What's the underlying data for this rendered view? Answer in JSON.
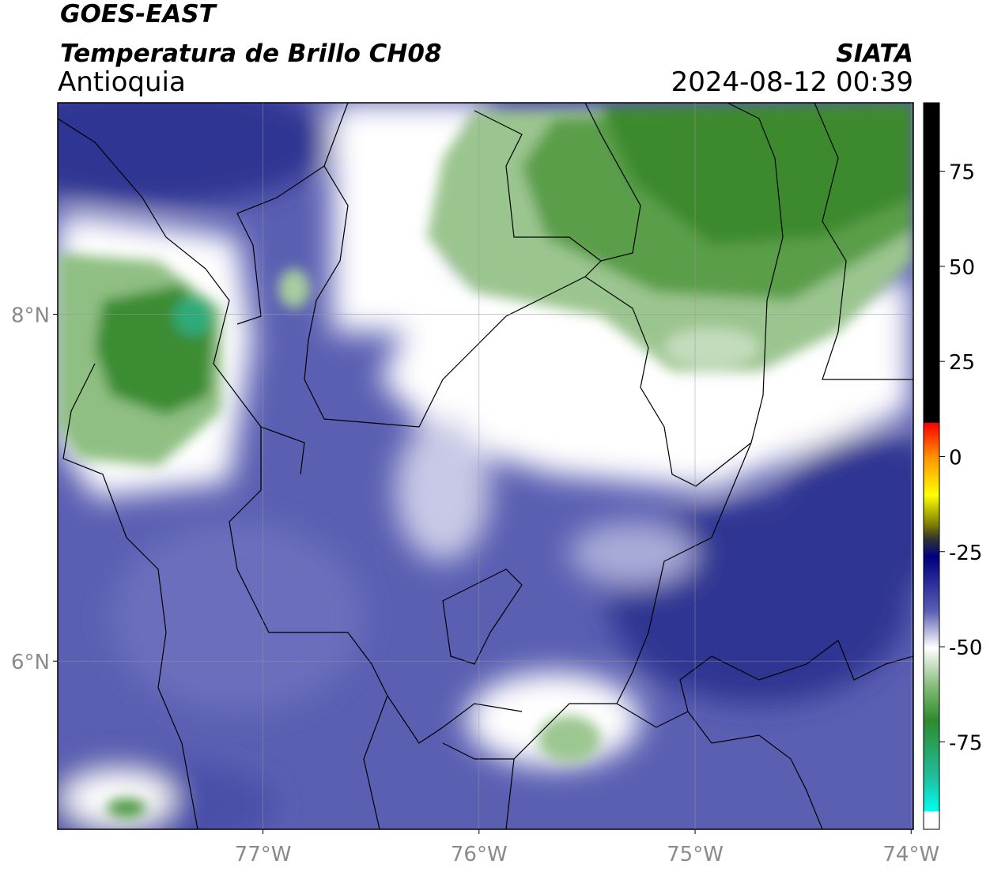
{
  "header": {
    "satellite": "GOES-EAST",
    "product": "Temperatura de Brillo CH08",
    "region": "Antioquia",
    "source": "SIATA",
    "datetime": "2024-08-12 00:39"
  },
  "map": {
    "xlim": [
      -77.95,
      -73.99
    ],
    "ylim": [
      5.03,
      9.22
    ],
    "xticks": [
      {
        "value": -77,
        "label": "77°W"
      },
      {
        "value": -76,
        "label": "76°W"
      },
      {
        "value": -75,
        "label": "75°W"
      },
      {
        "value": -74,
        "label": "74°W"
      }
    ],
    "yticks": [
      {
        "value": 8,
        "label": "8°N"
      },
      {
        "value": 6,
        "label": "6°N"
      }
    ],
    "grid": true
  },
  "colorbar": {
    "lim": [
      -98,
      93
    ],
    "ticks": [
      75,
      50,
      25,
      0,
      -25,
      -50,
      -75
    ]
  }
}
